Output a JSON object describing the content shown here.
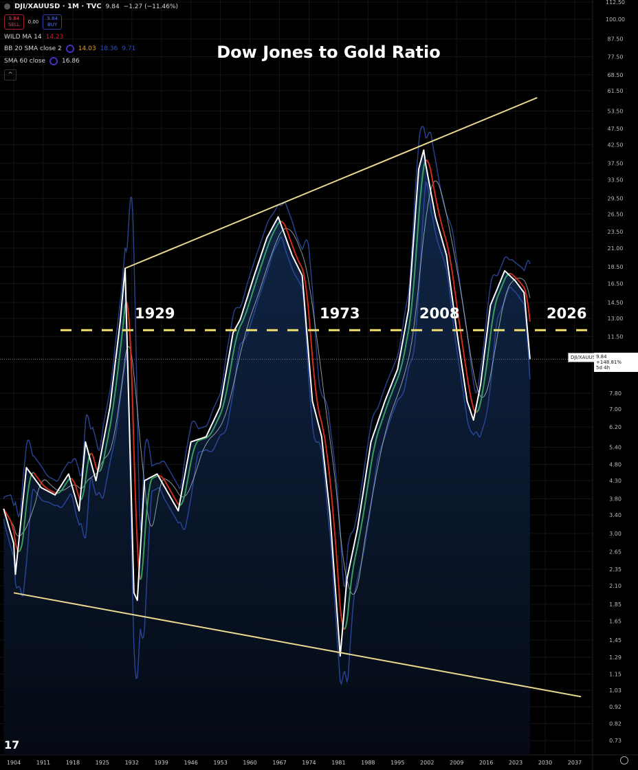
{
  "header": {
    "symbol": "DJI/XAUUSD · 1M · TVC",
    "last": "9.84",
    "change": "−1.27 (−11.46%)",
    "sell_price": "9.84",
    "sell_label": "SELL",
    "spread": "0.00",
    "buy_price": "9.84",
    "buy_label": "BUY",
    "indicators": [
      {
        "name": "WILD MA 14",
        "values": [
          "14.23"
        ],
        "colors": [
          "#d02030"
        ]
      },
      {
        "name": "BB 20 SMA close 2",
        "values": [
          "14.03",
          "18.36",
          "9.71"
        ],
        "colors": [
          "#e0a020",
          "#3050c0",
          "#3050c0"
        ]
      },
      {
        "name": "SMA 60 close",
        "values": [
          "16.86"
        ],
        "colors": [
          "#dddddd"
        ]
      }
    ],
    "collapse_icon": "chevron-up-icon"
  },
  "price_label": {
    "symbol": "DJI/XAUUSD",
    "value": "9.84",
    "change_pct": "+148.81%",
    "countdown": "5d 4h"
  },
  "logo": "TV",
  "chart_data": {
    "type": "line",
    "title": "Dow Jones to Gold Ratio",
    "y_scale": "log",
    "ylim": [
      0.73,
      112.5
    ],
    "xlim": [
      1901.5,
      2041
    ],
    "grid": true,
    "y_ticks": [
      "112.50",
      "100.00",
      "87.50",
      "77.50",
      "68.50",
      "61.50",
      "53.50",
      "47.50",
      "42.50",
      "37.50",
      "33.50",
      "29.50",
      "26.50",
      "23.50",
      "21.00",
      "18.50",
      "16.50",
      "14.50",
      "13.00",
      "11.50",
      "7.80",
      "7.00",
      "6.20",
      "5.40",
      "4.80",
      "4.30",
      "3.80",
      "3.40",
      "3.00",
      "2.65",
      "2.35",
      "2.10",
      "1.85",
      "1.65",
      "1.45",
      "1.29",
      "1.15",
      "1.03",
      "0.92",
      "0.82",
      "0.73"
    ],
    "x_ticks": [
      "1904",
      "1911",
      "1918",
      "1925",
      "1932",
      "1939",
      "1946",
      "1953",
      "1960",
      "1967",
      "1974",
      "1981",
      "1988",
      "1995",
      "2002",
      "2009",
      "2016",
      "2023",
      "2030",
      "2037"
    ],
    "series": [
      {
        "type": "line",
        "color": "#ffffff",
        "x": [
          1901.6,
          1904,
          1904.4,
          1907,
          1910.5,
          1913.8,
          1917,
          1919.5,
          1921,
          1923.5,
          1926.8,
          1929.2,
          1930.4,
          1932.5,
          1933.3,
          1935,
          1938,
          1943,
          1946,
          1949.6,
          1952.9,
          1956,
          1957.7,
          1961,
          1964,
          1966.7,
          1970,
          1972.4,
          1974.8,
          1977,
          1979,
          1981.4,
          1983,
          1985.5,
          1988.7,
          1992,
          1995,
          1997.6,
          2000,
          2001.2,
          2001.7,
          2004,
          2006.6,
          2009,
          2011.5,
          2013,
          2014.7,
          2017,
          2020.4,
          2022.9,
          2025,
          2026.4
        ],
        "y": [
          3.55,
          2.8,
          2.27,
          4.7,
          4.1,
          3.9,
          4.5,
          3.5,
          5.6,
          4.3,
          7.1,
          12.6,
          18.3,
          2.0,
          1.9,
          4.3,
          4.5,
          3.5,
          5.6,
          5.8,
          7.1,
          11.8,
          12.9,
          17.4,
          22.5,
          26,
          20,
          17.4,
          7.4,
          5.8,
          3.4,
          1.3,
          2.2,
          3.1,
          5.6,
          7.4,
          9.2,
          13.8,
          36,
          41,
          37,
          26,
          20,
          12,
          7.4,
          6.5,
          8.3,
          14.2,
          18,
          16.8,
          15.5,
          9.84
        ]
      }
    ],
    "trendlines": [
      {
        "name": "upper",
        "color": "#e8d890",
        "from": [
          1930.4,
          18.3
        ],
        "to": [
          2028.1,
          58.6
        ]
      },
      {
        "name": "lower",
        "color": "#e8d890",
        "from": [
          1904,
          2.0
        ],
        "to": [
          2038.5,
          0.985
        ]
      }
    ],
    "horizontal_levels": [
      {
        "value": 12,
        "color": "#f0e070",
        "style": "dashed"
      }
    ],
    "current_price": 9.84,
    "annotations": [
      {
        "text": "1929",
        "x": 1933.3,
        "y": 14.5
      },
      {
        "text": "1973",
        "x": 1978.3,
        "y": 14.5
      },
      {
        "text": "2008",
        "x": 2001,
        "y": 14.5
      },
      {
        "text": "2026",
        "x": 2026.5,
        "y": 14.5
      }
    ],
    "colors": {
      "fill": "#0c1c34",
      "ma_up": "#3aa060",
      "ma_down": "#d03020",
      "bands": "#3050b0",
      "sma": "#c8d8d0"
    }
  }
}
